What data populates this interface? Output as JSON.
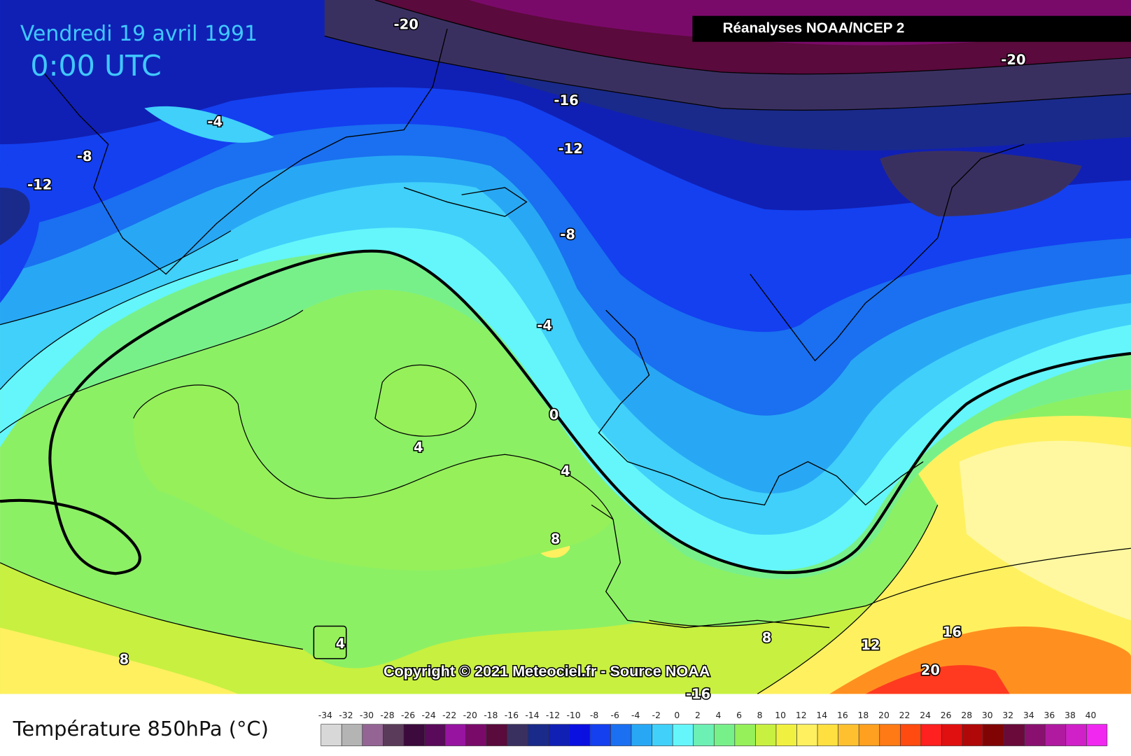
{
  "header": {
    "date": "Vendredi 19 avril 1991",
    "time": "0:00 UTC",
    "source_box": "Réanalyses NOAA/NCEP 2",
    "copyright": "Copyright © 2021 Meteociel.fr - Source NOAA"
  },
  "contour_labels": [
    "-20",
    "-16",
    "-12",
    "-8",
    "-4",
    "-4",
    "-8",
    "-12",
    "0",
    "4",
    "4",
    "8",
    "4",
    "8",
    "8",
    "12",
    "16",
    "20",
    "-16",
    "-20"
  ],
  "legend": {
    "title": "Température 850hPa (°C)",
    "ticks": [
      "-34",
      "-32",
      "-30",
      "-28",
      "-26",
      "-24",
      "-22",
      "-20",
      "-18",
      "-16",
      "-14",
      "-12",
      "-10",
      "-8",
      "-6",
      "-4",
      "-2",
      "0",
      "2",
      "4",
      "6",
      "8",
      "10",
      "12",
      "14",
      "16",
      "18",
      "20",
      "22",
      "24",
      "26",
      "28",
      "30",
      "32",
      "34",
      "36",
      "38",
      "40"
    ],
    "colors": [
      "#d8d8d8",
      "#b4b4b4",
      "#946494",
      "#5a3c5a",
      "#3c0a3c",
      "#5a0a5a",
      "#9614a0",
      "#7a0a6a",
      "#5a0a3c",
      "#3a3060",
      "#1a2a8a",
      "#1020b4",
      "#0a10e0",
      "#1440f0",
      "#1a70f0",
      "#28a8f4",
      "#40d0fa",
      "#64f6fa",
      "#6cf0b4",
      "#78f08a",
      "#96f05a",
      "#c8f040",
      "#f0f040",
      "#fff060",
      "#ffe040",
      "#ffc030",
      "#ffa020",
      "#ff7a14",
      "#ff4a10",
      "#ff2020",
      "#e01010",
      "#b00808",
      "#800404",
      "#6a0a3a",
      "#8a1070",
      "#b01aa0",
      "#d020c8",
      "#f028f0"
    ]
  }
}
